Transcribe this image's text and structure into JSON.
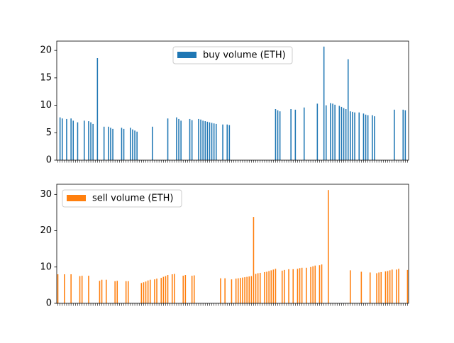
{
  "chart_data": [
    {
      "type": "bar",
      "categories": [
        null,
        null,
        null,
        null,
        null,
        null,
        null,
        null,
        null,
        null,
        null,
        null,
        null,
        null,
        null,
        null,
        null,
        null,
        null,
        null,
        null,
        null,
        null,
        null,
        null,
        null,
        null,
        null,
        null,
        null,
        null,
        null,
        null,
        null,
        null,
        null,
        null,
        null,
        null,
        null,
        null,
        null,
        null,
        null,
        null,
        null,
        null,
        null,
        null,
        null,
        null,
        null,
        null,
        null,
        null,
        null,
        null,
        null,
        null,
        null,
        null,
        null,
        null,
        null,
        null,
        null,
        null,
        null,
        null,
        null,
        null,
        null,
        null,
        null,
        null,
        null,
        null,
        null,
        null,
        null,
        null,
        null,
        null,
        null,
        null,
        null,
        null,
        null,
        null,
        null,
        null,
        null,
        null,
        null,
        null,
        null,
        null,
        null,
        null,
        null,
        null,
        null,
        null,
        null,
        null,
        null,
        null,
        null,
        null,
        null,
        null,
        null,
        null,
        null,
        null,
        null,
        null,
        null,
        null,
        null,
        null,
        null,
        null,
        null,
        null,
        null,
        null,
        null,
        null,
        null,
        null,
        null,
        null,
        null,
        null,
        null,
        null,
        null,
        null,
        null,
        null,
        null,
        null,
        null,
        null,
        null,
        null,
        null,
        null,
        null,
        null,
        null,
        null,
        null,
        null,
        null,
        null,
        null,
        null,
        null
      ],
      "series": [
        {
          "name": "buy volume (ETH)",
          "color": "#1f77b4",
          "values": [
            0,
            7.8,
            7.6,
            0,
            7.5,
            0,
            7.6,
            7.2,
            0,
            6.9,
            0,
            0,
            7.2,
            0,
            7.1,
            6.9,
            6.6,
            0,
            18.6,
            0,
            0,
            6.1,
            0,
            6.1,
            5.9,
            5.7,
            0,
            0,
            0,
            5.9,
            5.7,
            0,
            0,
            5.9,
            5.6,
            5.4,
            5.2,
            0,
            0,
            0,
            0,
            0,
            0,
            6.1,
            0,
            0,
            0,
            0,
            0,
            0,
            7.6,
            0,
            0,
            0,
            7.8,
            7.5,
            7.2,
            0,
            0,
            0,
            7.5,
            7.3,
            0,
            0,
            7.5,
            7.4,
            7.2,
            7.1,
            7,
            6.9,
            6.8,
            6.7,
            6.6,
            0,
            0,
            6.5,
            0,
            6.5,
            6.4,
            0,
            0,
            0,
            0,
            0,
            0,
            0,
            0,
            0,
            0,
            0,
            0,
            0,
            0,
            0,
            0,
            0,
            0,
            0,
            0,
            9.3,
            9.1,
            8.9,
            0,
            0,
            0,
            0,
            9.3,
            0,
            9.2,
            0,
            0,
            0,
            9.6,
            0,
            0,
            0,
            0,
            0,
            10.3,
            0,
            0,
            20.7,
            10,
            0,
            10.4,
            10.3,
            10.1,
            0,
            9.9,
            9.7,
            9.5,
            9.3,
            18.4,
            8.9,
            8.8,
            8.7,
            0,
            8.7,
            0,
            8.5,
            8.3,
            8.2,
            0,
            8.2,
            8,
            0,
            0,
            0,
            0,
            0,
            0,
            0,
            0,
            9.2,
            0,
            0,
            0,
            9.2,
            9.1,
            0
          ]
        }
      ],
      "ylim": [
        0,
        21.7
      ],
      "yticks": [
        0,
        5,
        10,
        15,
        20
      ],
      "legend": "upper center"
    },
    {
      "type": "bar",
      "categories": [
        null,
        null,
        null,
        null,
        null,
        null,
        null,
        null,
        null,
        null,
        null,
        null,
        null,
        null,
        null,
        null,
        null,
        null,
        null,
        null,
        null,
        null,
        null,
        null,
        null,
        null,
        null,
        null,
        null,
        null,
        null,
        null,
        null,
        null,
        null,
        null,
        null,
        null,
        null,
        null,
        null,
        null,
        null,
        null,
        null,
        null,
        null,
        null,
        null,
        null,
        null,
        null,
        null,
        null,
        null,
        null,
        null,
        null,
        null,
        null,
        null,
        null,
        null,
        null,
        null,
        null,
        null,
        null,
        null,
        null,
        null,
        null,
        null,
        null,
        null,
        null,
        null,
        null,
        null,
        null,
        null,
        null,
        null,
        null,
        null,
        null,
        null,
        null,
        null,
        null,
        null,
        null,
        null,
        null,
        null,
        null,
        null,
        null,
        null,
        null,
        null,
        null,
        null,
        null,
        null,
        null,
        null,
        null,
        null,
        null,
        null,
        null,
        null,
        null,
        null,
        null,
        null,
        null,
        null,
        null,
        null,
        null,
        null,
        null,
        null,
        null,
        null,
        null,
        null,
        null,
        null,
        null,
        null,
        null,
        null,
        null,
        null,
        null,
        null,
        null,
        null,
        null,
        null,
        null,
        null,
        null,
        null,
        null,
        null,
        null,
        null,
        null,
        null,
        null,
        null,
        null,
        null,
        null,
        null,
        null
      ],
      "series": [
        {
          "name": "sell volume (ETH)",
          "color": "#ff7f0e",
          "values": [
            8,
            0,
            0,
            8,
            0,
            0,
            8,
            0,
            0,
            0,
            7.5,
            7.6,
            0,
            0,
            7.6,
            0,
            0,
            0,
            0,
            6.2,
            6.5,
            0,
            6.5,
            0,
            0,
            0,
            6.1,
            6.2,
            0,
            0,
            0,
            6.1,
            6.1,
            0,
            0,
            0,
            0,
            0,
            5.6,
            5.8,
            6,
            6.3,
            6.5,
            0,
            6.6,
            6.8,
            0,
            7,
            7.3,
            7.5,
            7.8,
            0,
            8,
            8.1,
            0,
            0,
            0,
            7.6,
            7.8,
            0,
            0,
            7.6,
            7.7,
            0,
            0,
            0,
            0,
            0,
            0,
            0,
            0,
            0,
            0,
            0,
            6.9,
            0,
            6.9,
            0,
            0,
            6.6,
            0,
            6.8,
            6.9,
            7,
            7.1,
            7.2,
            7.3,
            7.4,
            7.5,
            23.8,
            8.1,
            8.3,
            8.4,
            0,
            8.6,
            8.7,
            8.9,
            9.1,
            9.3,
            9.5,
            0,
            0,
            9,
            9.2,
            0,
            9.4,
            0,
            9.4,
            0,
            9.5,
            9.7,
            9.8,
            0,
            9.8,
            0,
            10,
            10.2,
            10.4,
            0,
            10.5,
            10.7,
            0,
            0,
            31.2,
            0,
            0,
            0,
            0,
            0,
            0,
            0,
            0,
            0,
            9.1,
            0,
            0,
            0,
            0,
            8.7,
            0,
            0,
            0,
            8.5,
            0,
            0,
            8.3,
            8.5,
            8.6,
            0,
            8.8,
            8.9,
            9.1,
            9.3,
            0,
            9.3,
            9.5,
            0,
            0,
            0,
            9.2
          ]
        }
      ],
      "ylim": [
        0,
        32.8
      ],
      "yticks": [
        0,
        10,
        20,
        30
      ],
      "legend": "upper left"
    }
  ]
}
